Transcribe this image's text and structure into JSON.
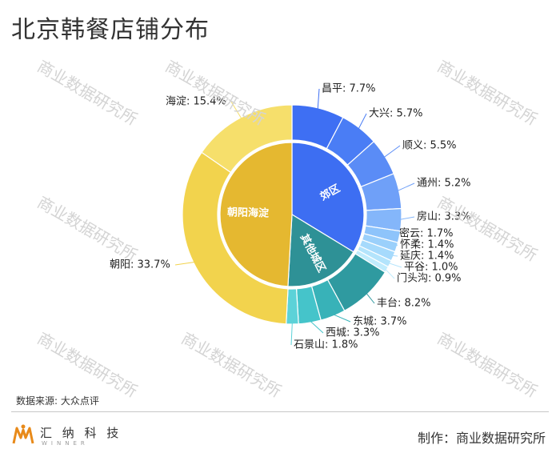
{
  "title": "北京韩餐店铺分布",
  "source": "数据来源: 大众点评",
  "producer": "制作：商业数据研究所",
  "watermark": "商业数据研究所",
  "logo": {
    "name": "汇 纳 科 技",
    "sub": "WINNER"
  },
  "chart_data": {
    "type": "sunburst",
    "title": "北京韩餐店铺分布",
    "inner": [
      {
        "name": "郊区",
        "value": 33.7,
        "color": "#3d6ef2"
      },
      {
        "name": "其他城区",
        "value": 17.2,
        "color": "#2e9196"
      },
      {
        "name": "朝阳海淀",
        "value": 49.1,
        "color": "#e5b830"
      }
    ],
    "outer": [
      {
        "name": "昌平",
        "value": 7.7,
        "label": "昌平: 7.7%",
        "color": "#3e6ff3",
        "group": "郊区"
      },
      {
        "name": "大兴",
        "value": 5.7,
        "label": "大兴: 5.7%",
        "color": "#4a7df5",
        "group": "郊区"
      },
      {
        "name": "顺义",
        "value": 5.5,
        "label": "顺义: 5.5%",
        "color": "#5a8cf6",
        "group": "郊区"
      },
      {
        "name": "通州",
        "value": 5.2,
        "label": "通州: 5.2%",
        "color": "#6fa0f8",
        "group": "郊区"
      },
      {
        "name": "房山",
        "value": 3.3,
        "label": "房山: 3.3%",
        "color": "#84b6fa",
        "group": "郊区"
      },
      {
        "name": "密云",
        "value": 1.7,
        "label": "密云: 1.7%",
        "color": "#8ec4fb",
        "group": "郊区"
      },
      {
        "name": "怀柔",
        "value": 1.4,
        "label": "怀柔: 1.4%",
        "color": "#9bd0fb",
        "group": "郊区"
      },
      {
        "name": "延庆",
        "value": 1.4,
        "label": "延庆: 1.4%",
        "color": "#a6dafc",
        "group": "郊区"
      },
      {
        "name": "平谷",
        "value": 1.0,
        "label": "平谷: 1.0%",
        "color": "#b3e4fc",
        "group": "郊区"
      },
      {
        "name": "门头沟",
        "value": 0.9,
        "label": "门头沟: 0.9%",
        "color": "#c0ecfd",
        "group": "郊区"
      },
      {
        "name": "丰台",
        "value": 8.2,
        "label": "丰台: 8.2%",
        "color": "#2f9aa0",
        "group": "其他城区"
      },
      {
        "name": "东城",
        "value": 3.7,
        "label": "东城: 3.7%",
        "color": "#38b2b8",
        "group": "其他城区"
      },
      {
        "name": "西城",
        "value": 3.3,
        "label": "西城: 3.3%",
        "color": "#45c4ca",
        "group": "其他城区"
      },
      {
        "name": "石景山",
        "value": 1.8,
        "label": "石景山: 1.8%",
        "color": "#5cd2d8",
        "group": "其他城区"
      },
      {
        "name": "朝阳",
        "value": 33.7,
        "label": "朝阳: 33.7%",
        "color": "#f2d34d",
        "group": "朝阳海淀"
      },
      {
        "name": "海淀",
        "value": 15.4,
        "label": "海淀: 15.4%",
        "color": "#f6df6b",
        "group": "朝阳海淀"
      }
    ]
  }
}
